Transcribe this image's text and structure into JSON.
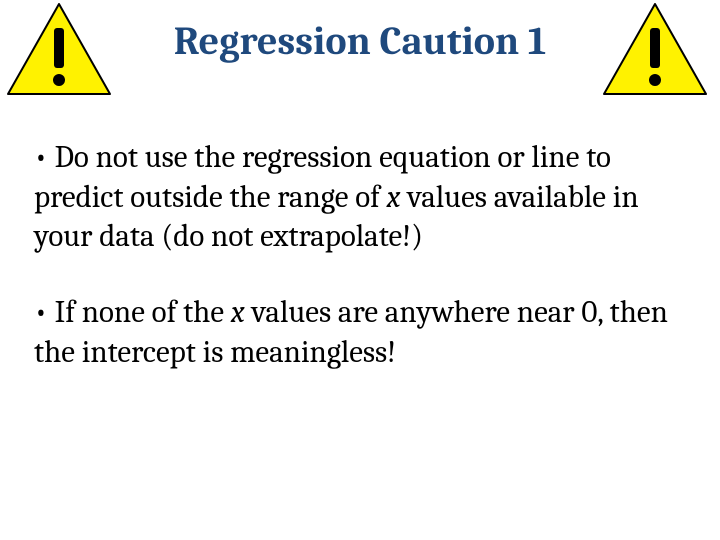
{
  "title": {
    "text": "Regression Caution 1",
    "color": "#1f497d",
    "fontsize": 40,
    "fontweight": 700
  },
  "warning_icon": {
    "triangle_fill": "#fff200",
    "triangle_stroke": "#000000",
    "mark_color": "#000000"
  },
  "bullets": [
    {
      "prefix": "• ",
      "segments": [
        {
          "text": "Do not use the regression equation or line to predict outside the range of ",
          "italic": false
        },
        {
          "text": "x",
          "italic": true
        },
        {
          "text": " values available in your data (do not extrapolate!)",
          "italic": false
        }
      ]
    },
    {
      "prefix": "• ",
      "segments": [
        {
          "text": "If none of the ",
          "italic": false
        },
        {
          "text": "x",
          "italic": true
        },
        {
          "text": " values are anywhere near 0, then the intercept is meaningless!",
          "italic": false
        }
      ]
    }
  ],
  "body_text_color": "#000000",
  "background_color": "#ffffff"
}
